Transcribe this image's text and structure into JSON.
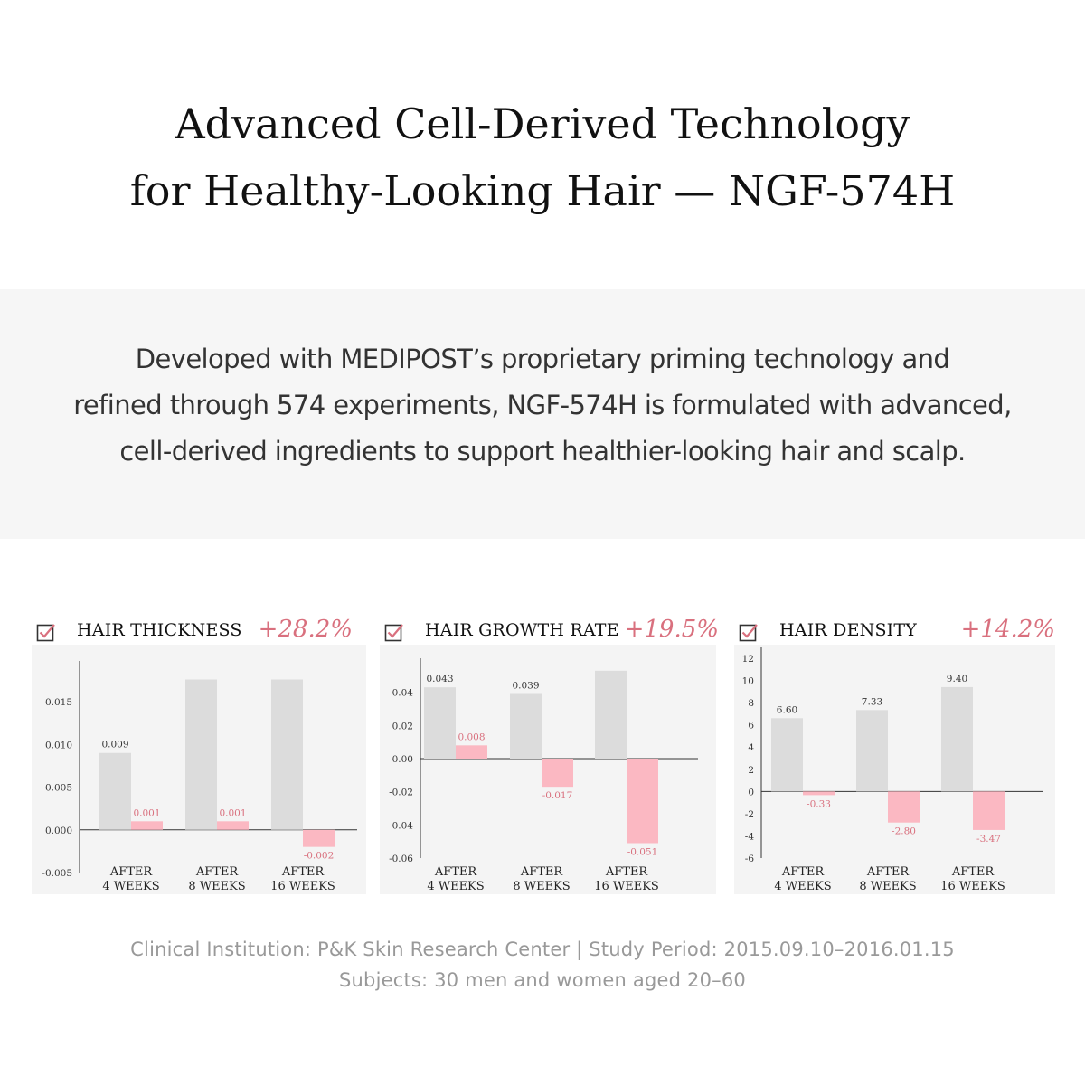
{
  "header": {
    "title_line1": "Advanced Cell-Derived Technology",
    "title_line2": "for Healthy-Looking Hair — NGF-574H"
  },
  "intro": {
    "line1": "Developed with MEDIPOST’s proprietary priming technology and",
    "line2": "refined through 574 experiments, NGF-574H is formulated with advanced,",
    "line3": "cell-derived ingredients to support healthier-looking hair and scalp."
  },
  "colors": {
    "treated_bar": "#dcdcdc",
    "control_bar": "#fbb8c2",
    "accent": "#d9707e",
    "panel_bg": "#f4f4f4",
    "intro_bg": "#f6f6f6"
  },
  "icons": {
    "check": "checkbox-check-icon"
  },
  "panels": [
    {
      "metric": "HAIR THICKNESS",
      "change": "+28.2%"
    },
    {
      "metric": "HAIR GROWTH RATE",
      "change": "+19.5%"
    },
    {
      "metric": "HAIR DENSITY",
      "change": "+14.2%"
    }
  ],
  "chart_data": [
    {
      "type": "bar",
      "categories": [
        "AFTER\n4 WEEKS",
        "AFTER\n8 WEEKS",
        "AFTER\n16 WEEKS"
      ],
      "ylim": [
        -0.005,
        0.0185
      ],
      "yticks": [
        -0.005,
        0.0,
        0.005,
        0.01,
        0.015
      ],
      "ytick_labels": [
        "-0.005",
        "0.000",
        "0.005",
        "0.010",
        "0.015"
      ],
      "grid": false,
      "series": [
        {
          "values": [
            0.009,
            0.0176,
            0.0176
          ],
          "labels": [
            "0.009",
            "",
            ""
          ]
        },
        {
          "values": [
            0.001,
            0.001,
            -0.002
          ],
          "labels": [
            "0.001",
            "0.001",
            "-0.002"
          ]
        }
      ]
    },
    {
      "type": "bar",
      "categories": [
        "AFTER\n4 WEEKS",
        "AFTER\n8 WEEKS",
        "AFTER\n16 WEEKS"
      ],
      "ylim": [
        -0.06,
        0.054
      ],
      "yticks": [
        -0.06,
        -0.04,
        -0.02,
        0.0,
        0.02,
        0.04
      ],
      "ytick_labels": [
        "-0.06",
        "-0.04",
        "-0.02",
        "0.00",
        "0.02",
        "0.04"
      ],
      "grid": false,
      "series": [
        {
          "values": [
            0.043,
            0.039,
            0.053
          ],
          "labels": [
            "0.043",
            "0.039",
            ""
          ]
        },
        {
          "values": [
            0.008,
            -0.017,
            -0.051
          ],
          "labels": [
            "0.008",
            "-0.017",
            "-0.051"
          ]
        }
      ]
    },
    {
      "type": "bar",
      "categories": [
        "AFTER\n4 WEEKS",
        "AFTER\n8 WEEKS",
        "AFTER\n16 WEEKS"
      ],
      "ylim": [
        -6,
        12
      ],
      "yticks": [
        -6,
        -4,
        -2,
        0,
        2,
        4,
        6,
        8,
        10,
        12
      ],
      "ytick_labels": [
        "-6",
        "-4",
        "-2",
        "0",
        "2",
        "4",
        "6",
        "8",
        "10",
        "12"
      ],
      "grid": false,
      "series": [
        {
          "values": [
            6.6,
            7.33,
            9.4
          ],
          "labels": [
            "6.60",
            "7.33",
            "9.40"
          ]
        },
        {
          "values": [
            -0.33,
            -2.8,
            -3.47
          ],
          "labels": [
            "-0.33",
            "-2.80",
            "-3.47"
          ]
        }
      ]
    }
  ],
  "footer": {
    "line1": "Clinical Institution: P&K Skin Research Center | Study Period: 2015.09.10–2016.01.15",
    "line2": "Subjects: 30 men and women aged 20–60"
  }
}
